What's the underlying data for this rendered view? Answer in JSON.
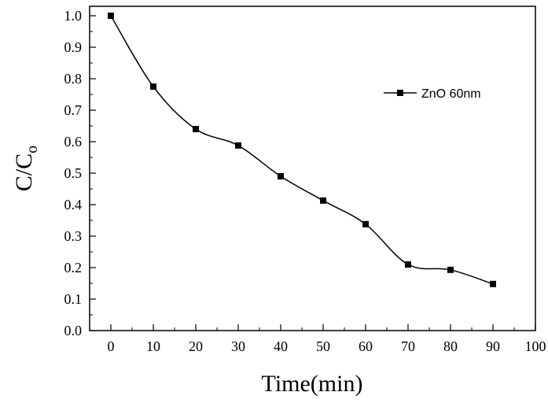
{
  "chart_data": {
    "type": "line",
    "xlabel": "Time(min)",
    "ylabel_main": "C/C",
    "ylabel_sub": "o",
    "xlim": [
      -5,
      100
    ],
    "ylim": [
      0,
      1.03
    ],
    "x_ticks": [
      0,
      10,
      20,
      30,
      40,
      50,
      60,
      70,
      80,
      90,
      100
    ],
    "y_ticks": [
      0.0,
      0.1,
      0.2,
      0.3,
      0.4,
      0.5,
      0.6,
      0.7,
      0.8,
      0.9,
      1.0
    ],
    "x_tick_labels": [
      "0",
      "10",
      "20",
      "30",
      "40",
      "50",
      "60",
      "70",
      "80",
      "90",
      "100"
    ],
    "y_tick_labels": [
      "0.0",
      "0.1",
      "0.2",
      "0.3",
      "0.4",
      "0.5",
      "0.6",
      "0.7",
      "0.8",
      "0.9",
      "1.0"
    ],
    "grid": false,
    "legend_position": "top-right",
    "series": [
      {
        "name": "ZnO 60nm",
        "marker": "square",
        "color": "#000000",
        "x": [
          0,
          10,
          20,
          30,
          40,
          50,
          60,
          70,
          80,
          90
        ],
        "y": [
          1.0,
          0.775,
          0.64,
          0.588,
          0.49,
          0.413,
          0.338,
          0.21,
          0.193,
          0.148
        ]
      }
    ]
  }
}
